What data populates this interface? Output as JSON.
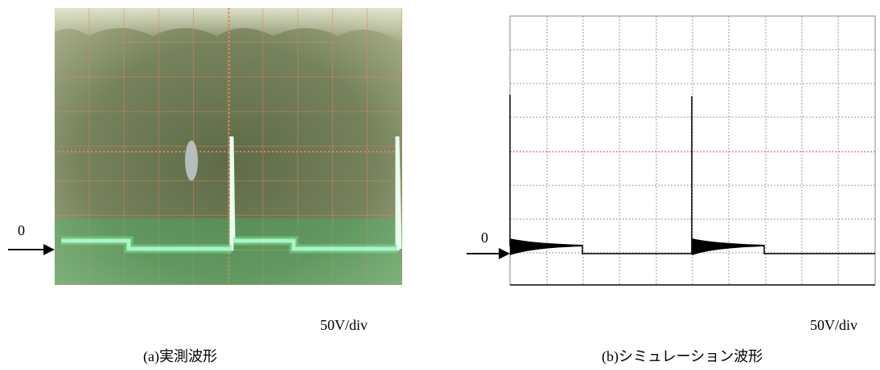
{
  "panels": [
    {
      "zero_label": "0",
      "scale": "50V/div",
      "caption": "(a)実測波形"
    },
    {
      "zero_label": "0",
      "scale": "50V/div",
      "caption": "(b)シミュレーション波形"
    }
  ]
}
